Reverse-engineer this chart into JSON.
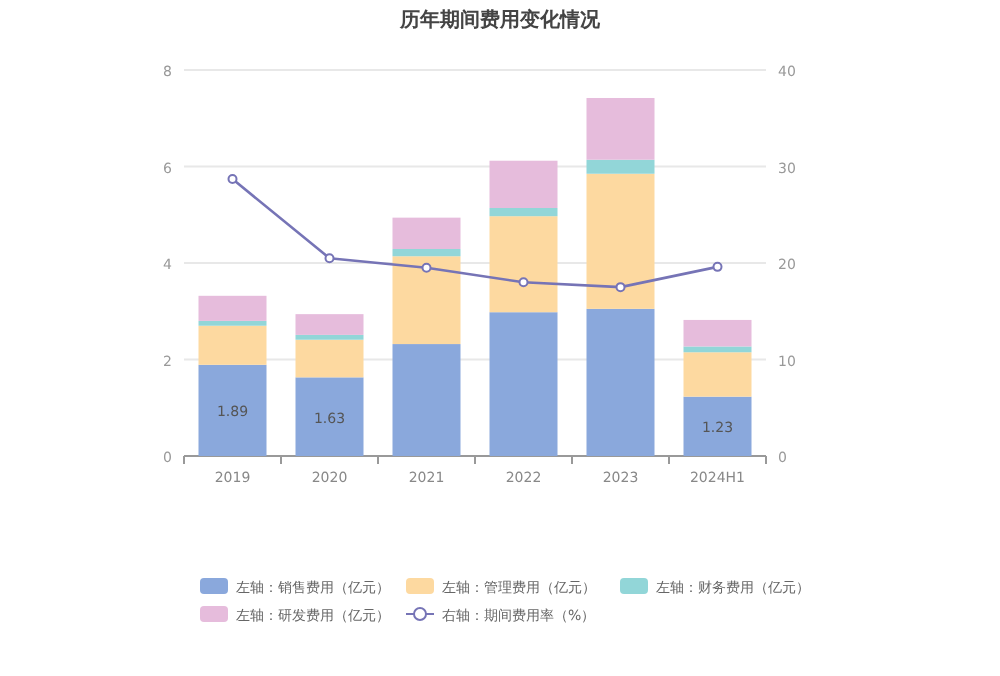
{
  "chart_data": {
    "type": "bar",
    "title": "历年期间费用变化情况",
    "categories": [
      "2019",
      "2020",
      "2021",
      "2022",
      "2023",
      "2024H1"
    ],
    "stacked": true,
    "series": [
      {
        "name": "左轴：销售费用（亿元）",
        "color": "#8aa8dc",
        "values": [
          1.89,
          1.63,
          2.32,
          2.98,
          3.05,
          1.23
        ],
        "value_labels": [
          "1.89",
          "1.63",
          null,
          null,
          null,
          "1.23"
        ]
      },
      {
        "name": "左轴：管理费用（亿元）",
        "color": "#fdd9a0",
        "values": [
          0.81,
          0.78,
          1.82,
          1.99,
          2.8,
          0.92
        ]
      },
      {
        "name": "左轴：财务费用（亿元）",
        "color": "#92d6d8",
        "values": [
          0.1,
          0.1,
          0.15,
          0.17,
          0.29,
          0.12
        ]
      },
      {
        "name": "左轴：研发费用（亿元）",
        "color": "#e6bcdc",
        "values": [
          0.52,
          0.43,
          0.65,
          0.98,
          1.28,
          0.55
        ]
      },
      {
        "name": "右轴：期间费用率（%）",
        "type": "line",
        "axis": "y2",
        "color": "#7674b6",
        "marker": "circle",
        "values": [
          28.7,
          20.5,
          19.5,
          18.0,
          17.5,
          19.6
        ]
      }
    ],
    "ylim": [
      0,
      8
    ],
    "yticks": [
      0,
      2,
      4,
      6,
      8
    ],
    "y2lim": [
      0,
      40
    ],
    "y2ticks": [
      0,
      10,
      20,
      30,
      40
    ],
    "grid": "y",
    "legend": "bottom"
  }
}
